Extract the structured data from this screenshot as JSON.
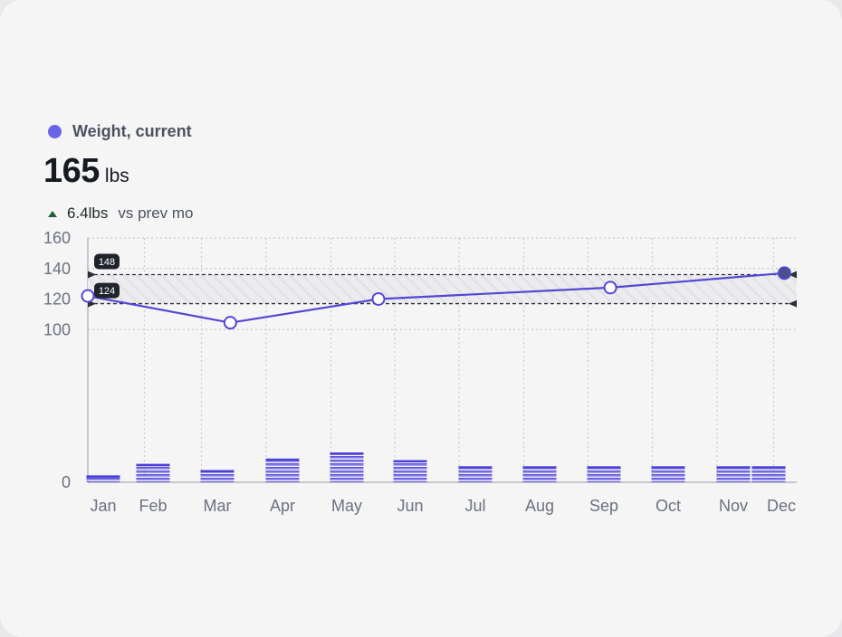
{
  "header": {
    "legend_label": "Weight, current",
    "value": "165",
    "unit": "lbs",
    "delta_value": "6.4lbs",
    "delta_compare": "vs prev mo"
  },
  "colors": {
    "accent": "#5347d4",
    "dot": "#6c63e6",
    "grid": "#c9cbd0",
    "band": "#e6e6e8",
    "marker": "#2b2f38"
  },
  "chart_data": {
    "type": "bar",
    "categories": [
      "Jan",
      "Feb",
      "Mar",
      "Apr",
      "May",
      "Jun",
      "Jul",
      "Aug",
      "Sep",
      "Oct",
      "Nov",
      "Dec"
    ],
    "ylim": [
      0,
      160
    ],
    "yticks": [
      0,
      100,
      120,
      140,
      160
    ],
    "grid": true,
    "bars": [
      4.5,
      12,
      8,
      15.5,
      19.5,
      14.5,
      10.5,
      10.5,
      10.5,
      10.5,
      10.5,
      10.5
    ],
    "line": {
      "x": [
        0,
        2.2,
        4.5,
        8.1,
        11.2
      ],
      "values": [
        122,
        104.5,
        120,
        127.5,
        137
      ]
    },
    "band": {
      "low": 124,
      "high": 148,
      "low_axis": 117,
      "high_axis": 136
    }
  }
}
